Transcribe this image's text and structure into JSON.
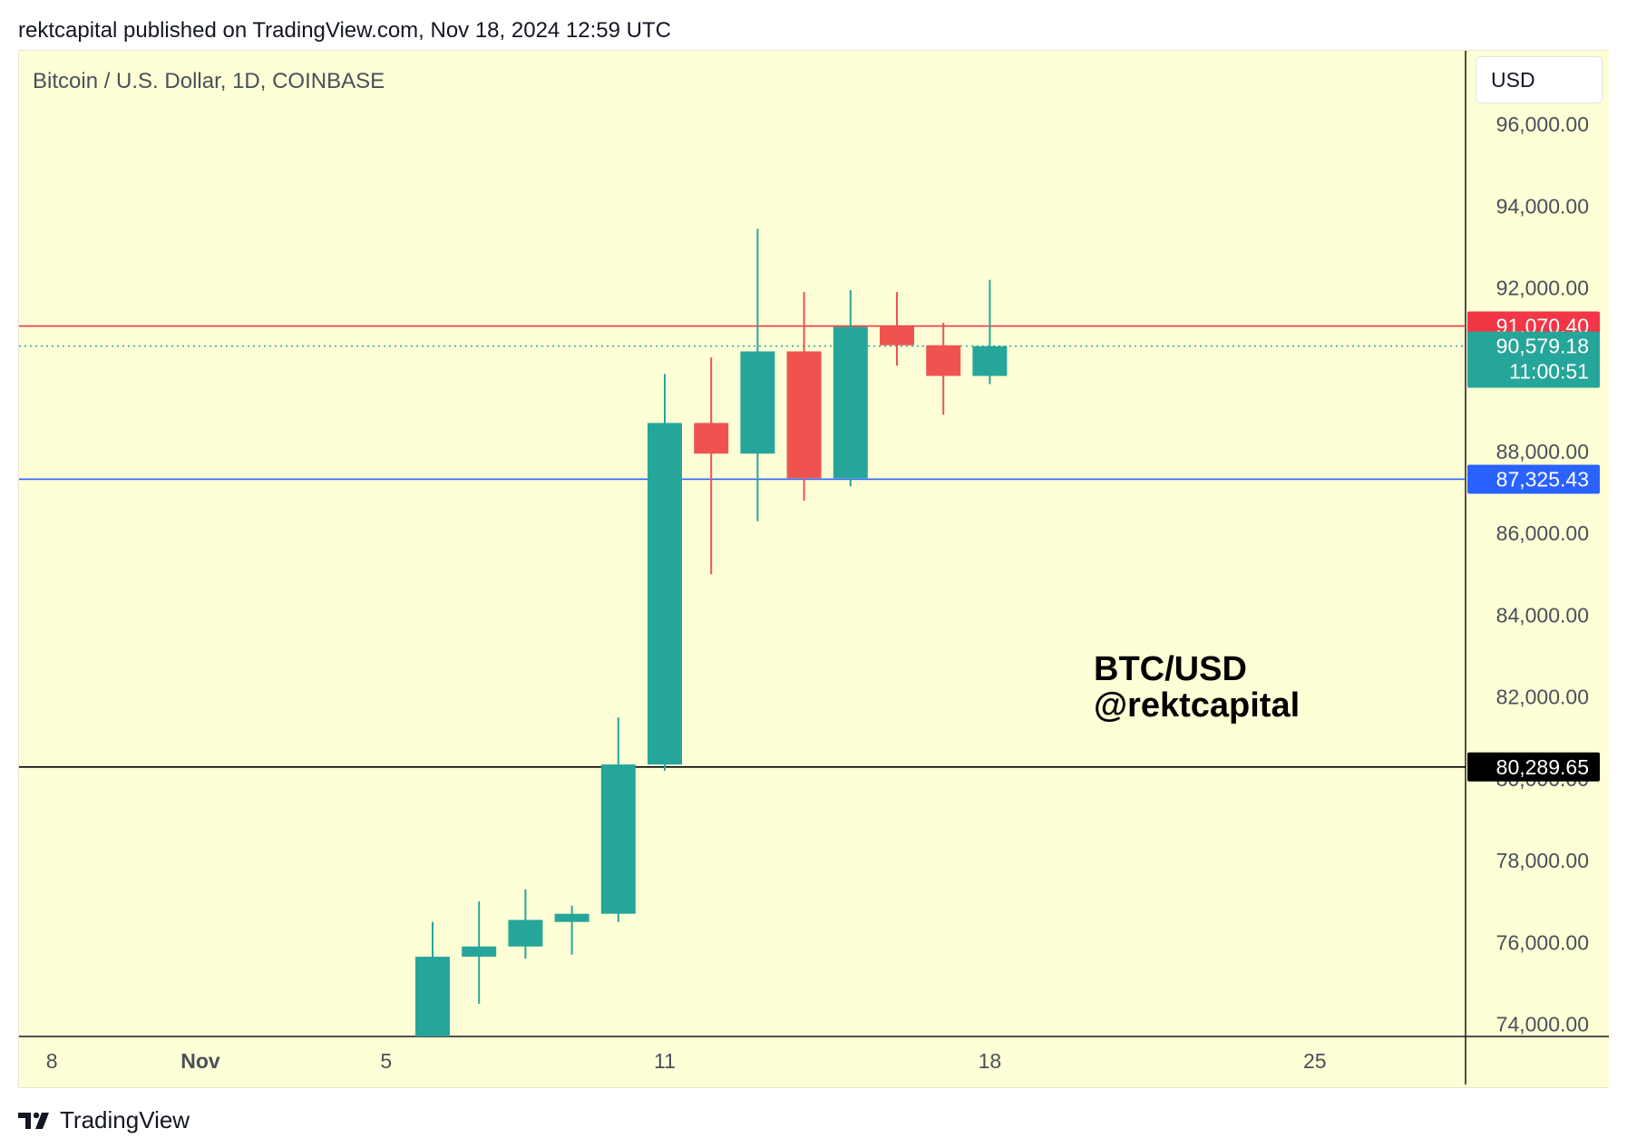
{
  "header": {
    "published": "rektcapital published on TradingView.com, Nov 18, 2024 12:59 UTC"
  },
  "symbol": {
    "title": "Bitcoin / U.S. Dollar, 1D, COINBASE"
  },
  "currency": {
    "label": "USD"
  },
  "watermark": {
    "line1": "BTC/USD",
    "line2": "@rektcapital"
  },
  "footer": {
    "brand": "TradingView"
  },
  "colors": {
    "background": "#feffd6",
    "up": "#26a69a",
    "down": "#ef5350",
    "red_level": "#f23645",
    "blue_level": "#2962ff",
    "black_level": "#000000"
  },
  "chart_data": {
    "type": "candlestick",
    "ylim": [
      73700,
      97800
    ],
    "yticks": [
      "74,000.00",
      "76,000.00",
      "78,000.00",
      "80,000.00",
      "82,000.00",
      "84,000.00",
      "86,000.00",
      "88,000.00",
      "92,000.00",
      "94,000.00",
      "96,000.00"
    ],
    "ytick_values": [
      74000,
      76000,
      78000,
      80000,
      82000,
      84000,
      86000,
      88000,
      92000,
      94000,
      96000
    ],
    "xticks": [
      {
        "label": "8",
        "day": -2.2
      },
      {
        "label": "Nov",
        "day": 1
      },
      {
        "label": "5",
        "day": 5
      },
      {
        "label": "11",
        "day": 11
      },
      {
        "label": "18",
        "day": 18
      },
      {
        "label": "25",
        "day": 25
      }
    ],
    "candles": [
      {
        "day": 6,
        "open": 73700,
        "high": 76500,
        "low": 73700,
        "close": 75650
      },
      {
        "day": 7,
        "open": 75650,
        "high": 77000,
        "low": 74500,
        "close": 75900
      },
      {
        "day": 8,
        "open": 75900,
        "high": 77300,
        "low": 75600,
        "close": 76550
      },
      {
        "day": 9,
        "open": 76500,
        "high": 76900,
        "low": 75700,
        "close": 76700
      },
      {
        "day": 10,
        "open": 76700,
        "high": 81500,
        "low": 76500,
        "close": 80350
      },
      {
        "day": 11,
        "open": 80350,
        "high": 89900,
        "low": 80200,
        "close": 88700
      },
      {
        "day": 12,
        "open": 88700,
        "high": 90300,
        "low": 85000,
        "close": 87950
      },
      {
        "day": 13,
        "open": 87950,
        "high": 93450,
        "low": 86300,
        "close": 90450
      },
      {
        "day": 14,
        "open": 90450,
        "high": 91900,
        "low": 86800,
        "close": 87350
      },
      {
        "day": 15,
        "open": 87350,
        "high": 91950,
        "low": 87150,
        "close": 91050
      },
      {
        "day": 16,
        "open": 91050,
        "high": 91900,
        "low": 90100,
        "close": 90600
      },
      {
        "day": 17,
        "open": 90600,
        "high": 91150,
        "low": 88900,
        "close": 89850
      },
      {
        "day": 18,
        "open": 89850,
        "high": 92200,
        "low": 89650,
        "close": 90579.18
      }
    ],
    "levels": [
      {
        "value": 91070.4,
        "label": "91,070.40",
        "color": "#f23645",
        "style": "solid"
      },
      {
        "value": 87325.43,
        "label": "87,325.43",
        "color": "#2962ff",
        "style": "solid"
      },
      {
        "value": 80289.65,
        "label": "80,289.65",
        "color": "#000000",
        "style": "solid"
      }
    ],
    "last_price": {
      "value": 90579.18,
      "label": "90,579.18",
      "countdown": "11:00:51",
      "color": "#26a69a"
    }
  }
}
